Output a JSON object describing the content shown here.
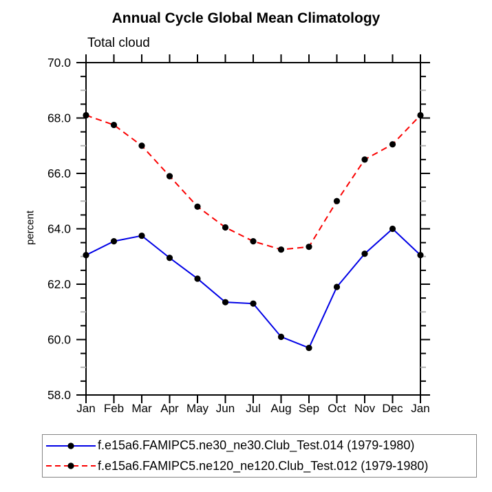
{
  "title": "Annual Cycle Global Mean Climatology",
  "subtitle": "Total cloud",
  "ylabel": "percent",
  "colors": {
    "series_blue": "#0000e6",
    "series_red": "#fa0000",
    "marker": "#000000",
    "axis": "#000000",
    "minor_tick_gray": "#b2b2b2",
    "legend_border": "#848484"
  },
  "legend": {
    "entries": [
      {
        "label": "f.e15a6.FAMIPC5.ne30_ne30.Club_Test.014 (1979-1980)",
        "style": "solid",
        "color": "#0000e6"
      },
      {
        "label": "f.e15a6.FAMIPC5.ne120_ne120.Club_Test.012 (1979-1980)",
        "style": "dashed",
        "color": "#fa0000"
      }
    ]
  },
  "chart_data": {
    "type": "line",
    "title": "Annual Cycle Global Mean Climatology",
    "subtitle": "Total cloud",
    "xlabel": "",
    "ylabel": "percent",
    "categories": [
      "Jan",
      "Feb",
      "Mar",
      "Apr",
      "May",
      "Jun",
      "Jul",
      "Aug",
      "Sep",
      "Oct",
      "Nov",
      "Dec",
      "Jan"
    ],
    "ylim": [
      58.0,
      70.0
    ],
    "yticks": [
      70.0,
      68.0,
      66.0,
      64.0,
      62.0,
      60.0,
      58.0
    ],
    "ytick_labels": [
      "70.0",
      "68.0",
      "66.0",
      "64.0",
      "62.0",
      "60.0",
      "58.0"
    ],
    "minor_tick_interval": 0.5,
    "grid": false,
    "legend_position": "bottom",
    "series": [
      {
        "name": "f.e15a6.FAMIPC5.ne30_ne30.Club_Test.014 (1979-1980)",
        "color": "#0000e6",
        "style": "solid",
        "marker": "circle",
        "values": [
          63.05,
          63.55,
          63.75,
          62.95,
          62.2,
          61.35,
          61.3,
          60.1,
          59.7,
          61.9,
          63.1,
          64.0,
          63.05
        ]
      },
      {
        "name": "f.e15a6.FAMIPC5.ne120_ne120.Club_Test.012 (1979-1980)",
        "color": "#fa0000",
        "style": "dashed",
        "marker": "circle",
        "values": [
          68.1,
          67.75,
          67.0,
          65.9,
          64.8,
          64.05,
          63.55,
          63.25,
          63.35,
          65.0,
          66.5,
          67.05,
          68.1
        ]
      }
    ]
  }
}
